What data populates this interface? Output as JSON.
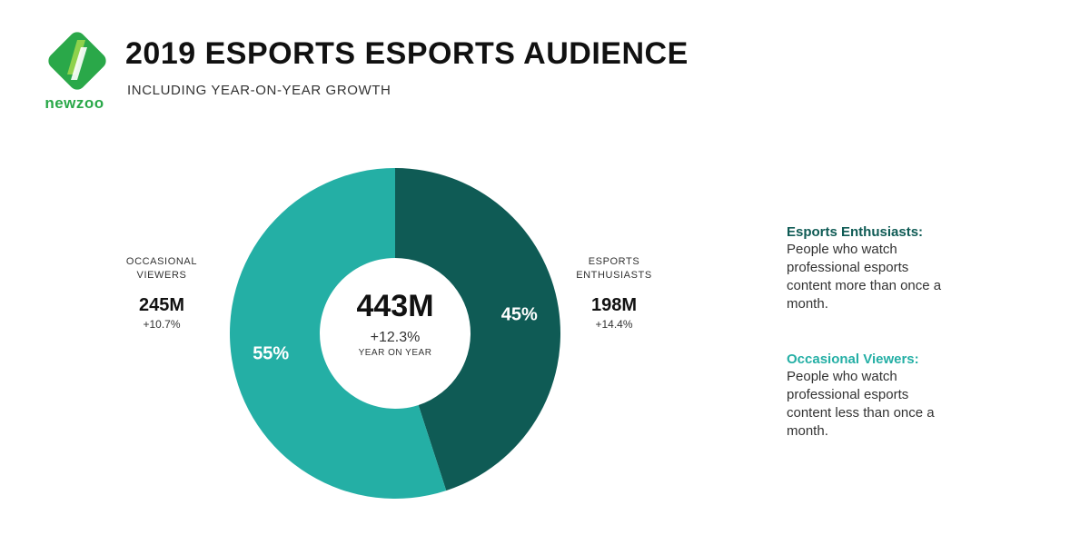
{
  "brand": {
    "name": "newzoo",
    "colors": {
      "dark_green": "#2aa849",
      "light_green": "#8fd24c"
    }
  },
  "header": {
    "title": "2019 ESPORTS ESPORTS AUDIENCE",
    "subtitle": "INCLUDING YEAR-ON-YEAR GROWTH"
  },
  "chart_data": {
    "type": "pie",
    "donut": true,
    "title": "2019 ESPORTS ESPORTS AUDIENCE",
    "subtitle": "INCLUDING YEAR-ON-YEAR GROWTH",
    "center": {
      "total": "443M",
      "growth": "+12.3%",
      "caption": "YEAR ON YEAR"
    },
    "slices": [
      {
        "name_lines": [
          "ESPORTS",
          "ENTHUSIASTS"
        ],
        "percent": 45,
        "percent_label": "45%",
        "value": 198,
        "value_label": "198M",
        "growth": "+14.4%",
        "color": "#0f5b55"
      },
      {
        "name_lines": [
          "OCCASIONAL",
          "VIEWERS"
        ],
        "percent": 55,
        "percent_label": "55%",
        "value": 245,
        "value_label": "245M",
        "growth": "+10.7%",
        "color": "#24afa5"
      }
    ]
  },
  "legend": [
    {
      "title": "Esports Enthusiasts:",
      "color": "#0f5b55",
      "description_lines": [
        "People who watch",
        "professional esports",
        "content more than once a",
        "month."
      ]
    },
    {
      "title": "Occasional Viewers:",
      "color": "#24afa5",
      "description_lines": [
        "People who watch",
        "professional esports",
        "content less than once a",
        "month."
      ]
    }
  ]
}
